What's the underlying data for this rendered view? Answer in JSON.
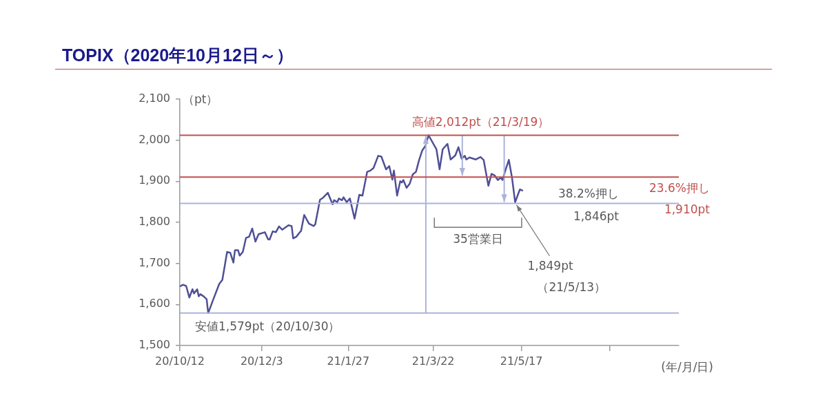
{
  "chart_data": {
    "type": "line",
    "title": "TOPIX（2020年10月12日～）",
    "xlabel": "(年/月/日)",
    "ylabel": "（pt）",
    "x": [
      "2020-10-12",
      "2020-10-14",
      "2020-10-16",
      "2020-10-18",
      "2020-10-20",
      "2020-10-21",
      "2020-10-23",
      "2020-10-24",
      "2020-10-25",
      "2020-10-27",
      "2020-10-29",
      "2020-10-30",
      "2020-11-02",
      "2020-11-06",
      "2020-11-08",
      "2020-11-11",
      "2020-11-13",
      "2020-11-15",
      "2020-11-16",
      "2020-11-18",
      "2020-11-19",
      "2020-11-21",
      "2020-11-23",
      "2020-11-25",
      "2020-11-27",
      "2020-11-29",
      "2020-12-01",
      "2020-12-05",
      "2020-12-07",
      "2020-12-08",
      "2020-12-10",
      "2020-12-12",
      "2020-12-14",
      "2020-12-16",
      "2020-12-20",
      "2020-12-22",
      "2020-12-23",
      "2020-12-25",
      "2020-12-27",
      "2020-12-28",
      "2020-12-30",
      "2021-01-02",
      "2021-01-05",
      "2021-01-06",
      "2021-01-09",
      "2021-01-11",
      "2021-01-14",
      "2021-01-17",
      "2021-01-18",
      "2021-01-20",
      "2021-01-21",
      "2021-01-23",
      "2021-01-24",
      "2021-01-26",
      "2021-01-28",
      "2021-01-31",
      "2021-02-03",
      "2021-02-05",
      "2021-02-08",
      "2021-02-10",
      "2021-02-12",
      "2021-02-15",
      "2021-02-17",
      "2021-02-20",
      "2021-02-22",
      "2021-02-24",
      "2021-02-25",
      "2021-02-27",
      "2021-03-01",
      "2021-03-02",
      "2021-03-03",
      "2021-03-05",
      "2021-03-07",
      "2021-03-09",
      "2021-03-11",
      "2021-03-13",
      "2021-03-15",
      "2021-03-17",
      "2021-03-19",
      "2021-03-24",
      "2021-03-26",
      "2021-03-28",
      "2021-03-31",
      "2021-04-02",
      "2021-04-05",
      "2021-04-07",
      "2021-04-09",
      "2021-04-11",
      "2021-04-12",
      "2021-04-14",
      "2021-04-18",
      "2021-04-21",
      "2021-04-23",
      "2021-04-26",
      "2021-04-28",
      "2021-04-30",
      "2021-05-02",
      "2021-05-04",
      "2021-05-05",
      "2021-05-07",
      "2021-05-09",
      "2021-05-11",
      "2021-05-13",
      "2021-05-16",
      "2021-05-18"
    ],
    "series": [
      {
        "color": "#4f4f96",
        "values": [
          1644,
          1648,
          1645,
          1617,
          1637,
          1627,
          1637,
          1620,
          1625,
          1620,
          1613,
          1579,
          1610,
          1650,
          1660,
          1728,
          1726,
          1702,
          1732,
          1732,
          1719,
          1728,
          1762,
          1765,
          1785,
          1753,
          1771,
          1776,
          1759,
          1758,
          1778,
          1776,
          1790,
          1782,
          1793,
          1791,
          1761,
          1765,
          1775,
          1779,
          1818,
          1797,
          1791,
          1795,
          1855,
          1860,
          1872,
          1844,
          1854,
          1849,
          1858,
          1854,
          1861,
          1849,
          1858,
          1809,
          1867,
          1865,
          1923,
          1926,
          1932,
          1962,
          1960,
          1929,
          1937,
          1904,
          1926,
          1865,
          1900,
          1897,
          1903,
          1884,
          1894,
          1917,
          1923,
          1952,
          1975,
          1986,
          2012,
          1978,
          1929,
          1978,
          1991,
          1953,
          1963,
          1983,
          1955,
          1962,
          1953,
          1958,
          1953,
          1959,
          1952,
          1889,
          1918,
          1914,
          1903,
          1909,
          1903,
          1929,
          1952,
          1909,
          1849,
          1880,
          1877
        ]
      }
    ],
    "xlim": [
      "2020-10-12",
      "2021-08-25"
    ],
    "xticks": [
      {
        "value": "2020-10-12",
        "label": "20/10/12"
      },
      {
        "value": "2020-12-03",
        "label": "20/12/3"
      },
      {
        "value": "2021-01-27",
        "label": "21/1/27"
      },
      {
        "value": "2021-03-22",
        "label": "21/3/22"
      },
      {
        "value": "2021-05-17",
        "label": "21/5/17"
      },
      {
        "value": "2021-07-12",
        "label": null
      }
    ],
    "ylim": [
      1500,
      2100
    ],
    "yticks": [
      {
        "value": 1500,
        "label": "1,500"
      },
      {
        "value": 1600,
        "label": "1,600"
      },
      {
        "value": 1700,
        "label": "1,700"
      },
      {
        "value": 1800,
        "label": "1,800"
      },
      {
        "value": 1900,
        "label": "1,900"
      },
      {
        "value": 2000,
        "label": "2,000"
      },
      {
        "value": 2100,
        "label": "2,100"
      }
    ],
    "ref_lines": [
      {
        "axis": "y",
        "value": 2012,
        "label": "高値2,012pt（21/3/19）",
        "color": "#c0504d"
      },
      {
        "axis": "y",
        "value": 1910,
        "label": "23.6%押し 1,910pt",
        "color": "#c0504d"
      },
      {
        "axis": "y",
        "value": 1846,
        "label": "38.2%押し 1,846pt",
        "color": "#aab3db"
      },
      {
        "axis": "y",
        "value": 1579,
        "label": "安値1,579pt（20/10/30）",
        "color": "#aab3db"
      }
    ],
    "annotations": [
      {
        "text": "1,849pt（21/5/13）",
        "x": "2021-05-13",
        "y": 1849
      },
      "35営業日"
    ],
    "grid": false,
    "legend": false,
    "marker": "none",
    "line_style": "solid"
  }
}
